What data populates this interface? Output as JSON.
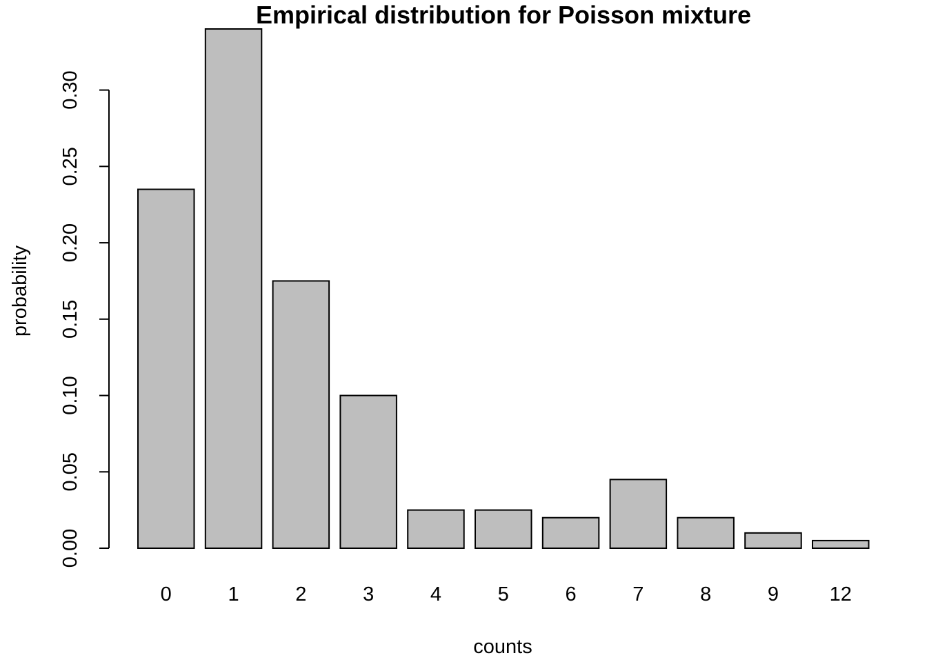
{
  "chart_data": {
    "type": "bar",
    "title": "Empirical distribution for Poisson mixture",
    "xlabel": "counts",
    "ylabel": "probability",
    "categories": [
      "0",
      "1",
      "2",
      "3",
      "4",
      "5",
      "6",
      "7",
      "8",
      "9",
      "12"
    ],
    "values": [
      0.235,
      0.34,
      0.175,
      0.1,
      0.025,
      0.025,
      0.02,
      0.045,
      0.02,
      0.01,
      0.005
    ],
    "yticks": [
      "0.00",
      "0.05",
      "0.10",
      "0.15",
      "0.20",
      "0.25",
      "0.30"
    ],
    "ylim": [
      0,
      0.34
    ],
    "grid": false,
    "bar_color": "#bebebe",
    "border_color": "#000000"
  }
}
